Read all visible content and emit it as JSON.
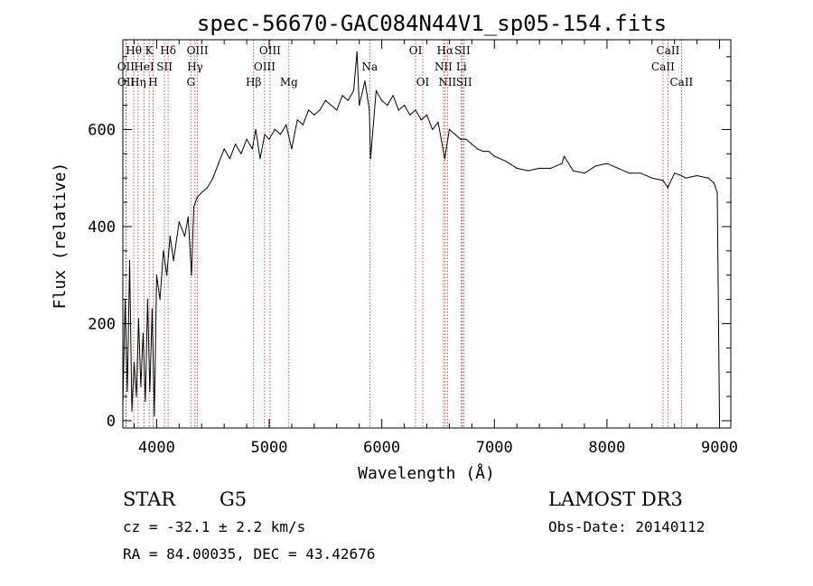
{
  "chart_data": {
    "type": "line",
    "title": "spec-56670-GAC084N44V1_sp05-154.fits",
    "xlabel": "Wavelength (Å)",
    "ylabel": "Flux (relative)",
    "xlim": [
      3700,
      9100
    ],
    "ylim": [
      -15,
      785
    ],
    "xticks": [
      4000,
      5000,
      6000,
      7000,
      8000,
      9000
    ],
    "yticks": [
      0,
      200,
      400,
      600
    ],
    "series": [
      {
        "name": "flux",
        "x": [
          3700,
          3720,
          3740,
          3760,
          3780,
          3800,
          3820,
          3840,
          3860,
          3880,
          3900,
          3920,
          3940,
          3960,
          3980,
          4000,
          4030,
          4060,
          4090,
          4120,
          4150,
          4200,
          4250,
          4280,
          4310,
          4330,
          4360,
          4400,
          4450,
          4500,
          4550,
          4600,
          4650,
          4700,
          4750,
          4800,
          4850,
          4880,
          4920,
          4960,
          5000,
          5050,
          5100,
          5150,
          5200,
          5250,
          5300,
          5350,
          5400,
          5450,
          5500,
          5550,
          5600,
          5650,
          5700,
          5750,
          5780,
          5800,
          5850,
          5890,
          5900,
          5950,
          6000,
          6050,
          6100,
          6150,
          6200,
          6250,
          6300,
          6350,
          6400,
          6450,
          6500,
          6560,
          6600,
          6650,
          6700,
          6750,
          6800,
          6850,
          6900,
          6950,
          7000,
          7100,
          7200,
          7300,
          7400,
          7500,
          7600,
          7620,
          7700,
          7800,
          7900,
          8000,
          8100,
          8200,
          8300,
          8400,
          8500,
          8540,
          8600,
          8660,
          8700,
          8800,
          8900,
          8950,
          8980,
          9000
        ],
        "values": [
          30,
          250,
          60,
          330,
          20,
          120,
          50,
          210,
          70,
          180,
          40,
          250,
          60,
          230,
          10,
          300,
          250,
          350,
          300,
          380,
          330,
          410,
          380,
          420,
          300,
          440,
          460,
          470,
          480,
          500,
          530,
          560,
          540,
          570,
          550,
          580,
          560,
          600,
          540,
          590,
          580,
          600,
          590,
          610,
          560,
          620,
          610,
          640,
          630,
          640,
          660,
          650,
          640,
          670,
          660,
          680,
          760,
          650,
          700,
          640,
          540,
          680,
          660,
          650,
          670,
          640,
          650,
          630,
          640,
          620,
          630,
          600,
          615,
          540,
          600,
          590,
          580,
          580,
          570,
          560,
          555,
          555,
          545,
          535,
          520,
          515,
          520,
          520,
          530,
          545,
          515,
          510,
          525,
          530,
          520,
          510,
          510,
          500,
          495,
          480,
          510,
          505,
          500,
          505,
          500,
          490,
          470,
          0
        ]
      }
    ],
    "spectral_lines": [
      {
        "label": "Hθ",
        "wavelength": 3797,
        "row": 1
      },
      {
        "label": "OII",
        "wavelength": 3727,
        "row": 2
      },
      {
        "label": "OII",
        "wavelength": 3729,
        "row": 3
      },
      {
        "label": "K",
        "wavelength": 3934,
        "row": 1
      },
      {
        "label": "HeI",
        "wavelength": 3889,
        "row": 2
      },
      {
        "label": "Hη",
        "wavelength": 3835,
        "row": 3
      },
      {
        "label": "Hδ",
        "wavelength": 4102,
        "row": 1
      },
      {
        "label": "SII",
        "wavelength": 4070,
        "row": 2
      },
      {
        "label": "H",
        "wavelength": 3969,
        "row": 3
      },
      {
        "label": "OIII",
        "wavelength": 4363,
        "row": 1
      },
      {
        "label": "Hγ",
        "wavelength": 4341,
        "row": 2
      },
      {
        "label": "G",
        "wavelength": 4304,
        "row": 3
      },
      {
        "label": "OIII",
        "wavelength": 5007,
        "row": 1
      },
      {
        "label": "OIII",
        "wavelength": 4959,
        "row": 2
      },
      {
        "label": "Hβ",
        "wavelength": 4861,
        "row": 3
      },
      {
        "label": "Mg",
        "wavelength": 5175,
        "row": 3
      },
      {
        "label": "Na",
        "wavelength": 5893,
        "row": 2
      },
      {
        "label": "OI",
        "wavelength": 6300,
        "row": 1
      },
      {
        "label": "OI",
        "wavelength": 6364,
        "row": 3
      },
      {
        "label": "Hα",
        "wavelength": 6563,
        "row": 1
      },
      {
        "label": "NII",
        "wavelength": 6548,
        "row": 2
      },
      {
        "label": "NII",
        "wavelength": 6583,
        "row": 3
      },
      {
        "label": "SII",
        "wavelength": 6716,
        "row": 1
      },
      {
        "label": "Li",
        "wavelength": 6707,
        "row": 2
      },
      {
        "label": "SII",
        "wavelength": 6731,
        "row": 3
      },
      {
        "label": "CaII",
        "wavelength": 8542,
        "row": 1
      },
      {
        "label": "CaII",
        "wavelength": 8498,
        "row": 2
      },
      {
        "label": "CaII",
        "wavelength": 8662,
        "row": 3
      }
    ]
  },
  "info": {
    "class_label": "STAR",
    "subclass_label": "G5",
    "survey": "LAMOST DR3",
    "cz": "cz = -32.1 ± 2.2 km/s",
    "obs_date": "Obs-Date: 20140112",
    "coords": "RA =  84.00035, DEC =  43.42676"
  }
}
